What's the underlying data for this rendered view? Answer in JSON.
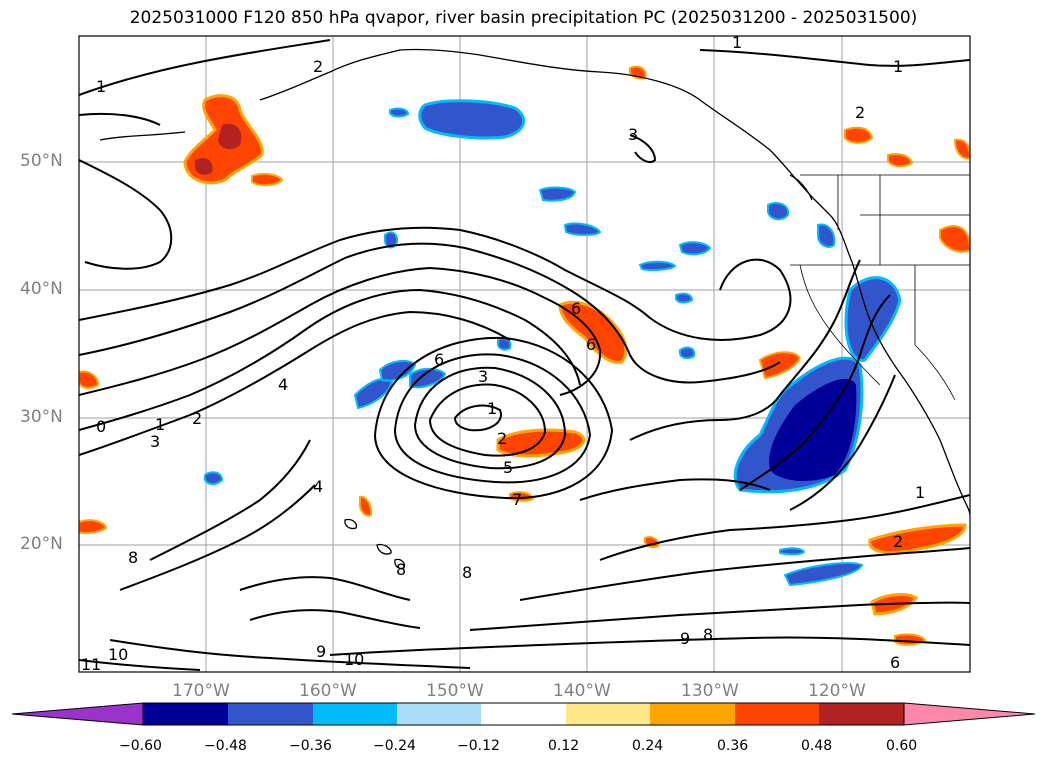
{
  "title": "2025031000 F120 850 hPa qvapor, river basin precipitation PC (2025031200 - 2025031500)",
  "lat_labels": [
    "50°N",
    "40°N",
    "30°N",
    "20°N"
  ],
  "lon_labels": [
    "170°W",
    "160°W",
    "150°W",
    "140°W",
    "130°W",
    "120°W"
  ],
  "colorbar": {
    "ticks": [
      "−0.60",
      "−0.48",
      "−0.36",
      "−0.24",
      "−0.12",
      "0.12",
      "0.24",
      "0.36",
      "0.48",
      "0.60"
    ],
    "colors": [
      "#9933cc",
      "#000099",
      "#3355cc",
      "#00bbff",
      "#aaddf7",
      "#ffffff",
      "#ffe88a",
      "#ffa500",
      "#ff4400",
      "#b22222",
      "#ff88aa"
    ]
  },
  "contour_labels": [
    "1",
    "1",
    "1",
    "2",
    "2",
    "3",
    "3",
    "4",
    "5",
    "6",
    "6",
    "6",
    "7",
    "8",
    "8",
    "8",
    "9",
    "9",
    "10",
    "10",
    "11",
    "0",
    "1",
    "2",
    "3",
    "2",
    "1",
    "2",
    "1",
    "8",
    "6",
    "4"
  ]
}
